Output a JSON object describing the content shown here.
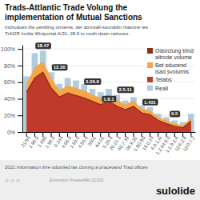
{
  "chart_data": {
    "type": "bar",
    "title": "Trads-Attlantic Trade Volung the\nimplementation of Mutual Sanctions",
    "subtitle": "Inchudues the pertilling orments, der dornvall-sounddin rhatuine tes\nTrAI2R Incltis Winiportat A/31, 28.9 to muth-desin ratiunes.",
    "categories": [
      "21/94",
      "1.96.0",
      "1.695",
      "1.96.0",
      "0.244",
      "4.66.0",
      "1.50.0",
      "4.50.0",
      "2001",
      "A4.01",
      "5.20.8",
      "20.21.1",
      "60.7.49",
      "06.9.31",
      "1.B0.B0",
      "18.0.24",
      "4.0.1.lo",
      "1.2.04.8.0",
      "1.1.9.1.6",
      "11/6.2.6",
      "11/0.7.2"
    ],
    "series": [
      {
        "name": "Odorclung trind\naitrode volume",
        "type": "line",
        "color": "#8B3010",
        "values": [
          48,
          65,
          72,
          53,
          42,
          47,
          44,
          41,
          37,
          33,
          37,
          31,
          27,
          31,
          23,
          21,
          14,
          10,
          7,
          5,
          13
        ]
      },
      {
        "name": "Bet sducend\nisad svolumis",
        "type": "area",
        "color": "#f5a54a",
        "values": [
          58,
          78,
          85,
          65,
          50,
          56,
          53,
          50,
          45,
          41,
          45,
          39,
          33,
          38,
          28,
          26,
          18,
          14,
          10,
          8,
          17
        ]
      },
      {
        "name": "Tetabs",
        "type": "area",
        "color": "#c0392b",
        "values": [
          48,
          65,
          72,
          53,
          42,
          47,
          44,
          41,
          37,
          33,
          37,
          31,
          27,
          31,
          23,
          21,
          14,
          10,
          7,
          5,
          13
        ]
      },
      {
        "name": "Reall",
        "type": "bar",
        "color": "#aecde0",
        "values": [
          67,
          95,
          98,
          72,
          58,
          65,
          62,
          58,
          52,
          48,
          52,
          45,
          38,
          42,
          32,
          30,
          22,
          18,
          14,
          12,
          22
        ]
      }
    ],
    "annotations": [
      {
        "x": 2,
        "y": 98,
        "text": "18.47"
      },
      {
        "x": 4,
        "y": 72,
        "text": "12.30"
      },
      {
        "x": 8,
        "y": 55,
        "text": "3.26.8"
      },
      {
        "x": 12,
        "y": 45,
        "text": "2.5.11"
      },
      {
        "x": 10,
        "y": 34,
        "text": "1.8.1"
      },
      {
        "x": 15,
        "y": 30,
        "text": "1.431"
      },
      {
        "x": 18,
        "y": 16,
        "text": "0.5"
      }
    ],
    "ylim": [
      0,
      105
    ],
    "yticks": [
      {
        "value": 0,
        "label": "0%"
      },
      {
        "value": 20,
        "label": "20%"
      },
      {
        "value": 40,
        "label": "40%"
      },
      {
        "value": 60,
        "label": "60%"
      },
      {
        "value": 80,
        "label": "80%"
      },
      {
        "value": 100,
        "label": "100%"
      }
    ],
    "grid": true,
    "legend": "top-right",
    "footer": "2021 Information thre oduniled las cloning a pracevand Trad offices",
    "icons": "○  ○  ○",
    "source": "Emontion PreaseMkl 02201",
    "brand": "sulolide"
  }
}
